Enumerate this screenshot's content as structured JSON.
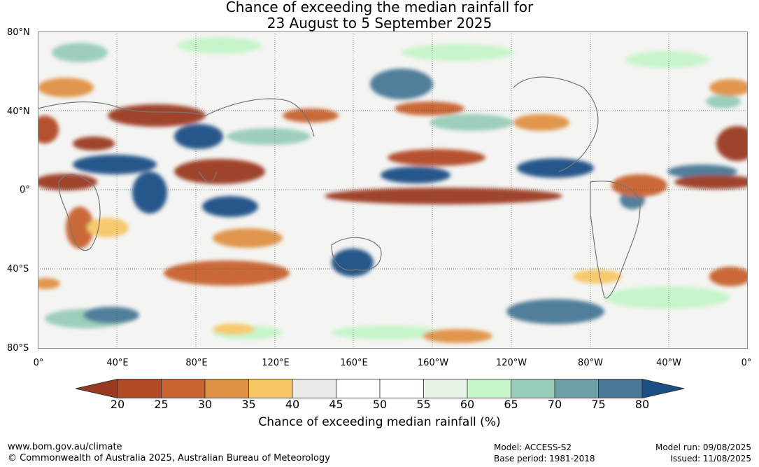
{
  "title_line1": "Chance of exceeding the median rainfall for",
  "title_line2": "23 August to 5 September 2025",
  "lat_labels": [
    "80°N",
    "40°N",
    "0°",
    "40°S",
    "80°S"
  ],
  "lon_labels": [
    "0°",
    "40°E",
    "80°E",
    "120°E",
    "160°E",
    "160°W",
    "120°W",
    "80°W",
    "40°W",
    "0°"
  ],
  "legend": {
    "ticks": [
      "20",
      "25",
      "30",
      "35",
      "40",
      "45",
      "50",
      "55",
      "60",
      "65",
      "70",
      "75",
      "80"
    ],
    "colors": [
      "#9b3a23",
      "#b24a26",
      "#c8622f",
      "#e09244",
      "#f7c766",
      "#ebeae6",
      "#ffffff",
      "#ffffff",
      "#e9f5e8",
      "#c5f5c8",
      "#98cdb8",
      "#6fa0a8",
      "#4a7896",
      "#1c4f86"
    ],
    "title": "Chance of exceeding median rainfall (%)"
  },
  "footer": {
    "website": "www.bom.gov.au/climate",
    "copyright": "© Commonwealth of Australia 2025, Australian Bureau of Meteorology",
    "model": "Model: ACCESS-S2",
    "base_period": "Base period: 1981-2018",
    "model_run": "Model run: 09/08/2025",
    "issued": "Issued: 11/08/2025"
  }
}
